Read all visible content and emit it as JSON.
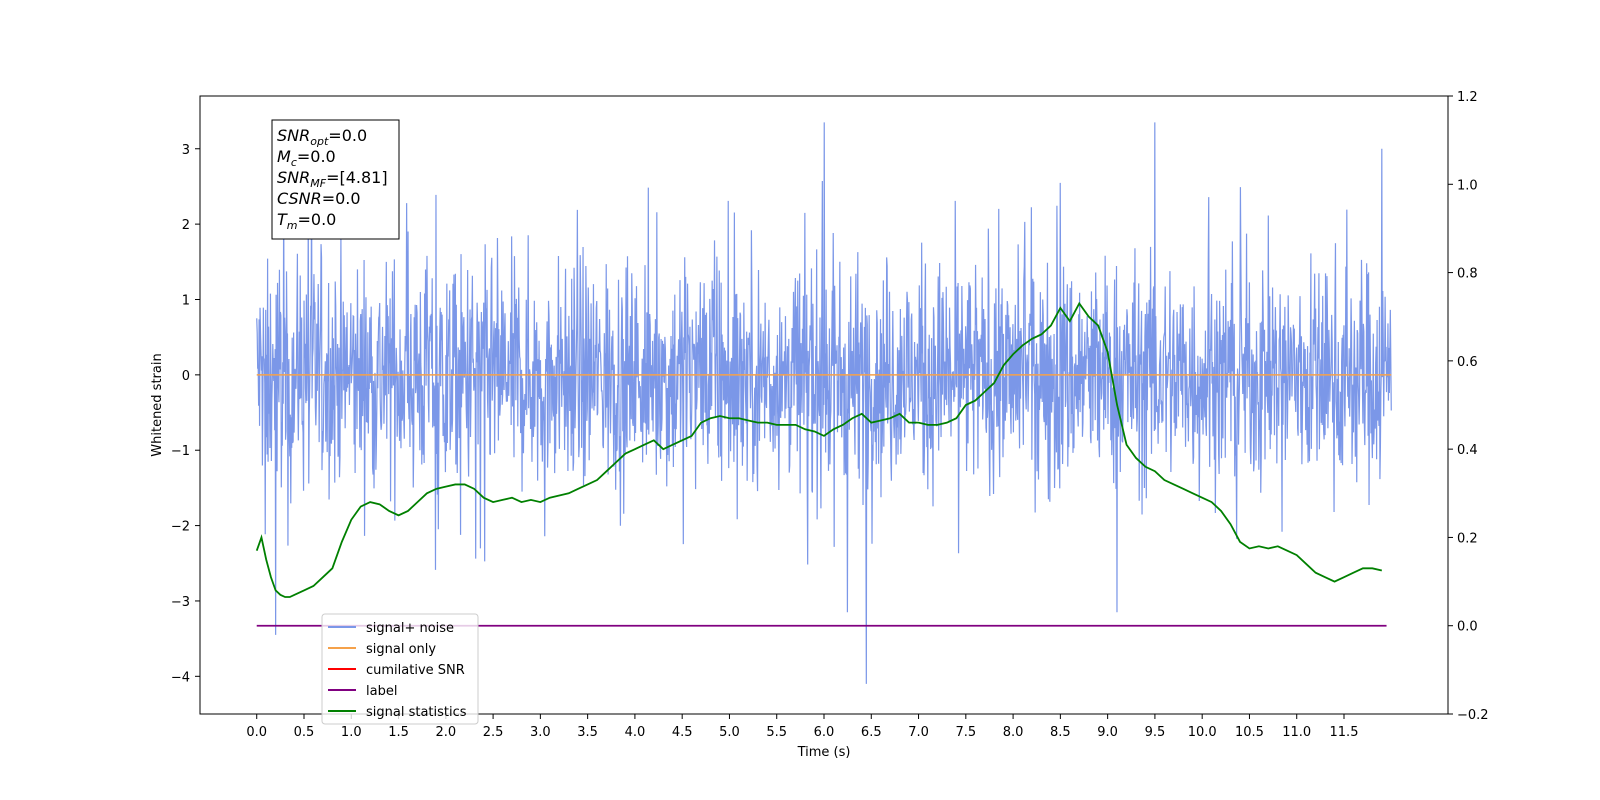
{
  "chart_data": {
    "type": "line",
    "xlabel": "Time (s)",
    "ylabel": "Whitened strain",
    "xlim": [
      -0.6,
      12.6
    ],
    "ylim": [
      -4.5,
      3.7
    ],
    "y2lim": [
      -0.2,
      1.2
    ],
    "x_ticks": [
      "0.0",
      "0.5",
      "1.0",
      "1.5",
      "2.0",
      "2.5",
      "3.0",
      "3.5",
      "4.0",
      "4.5",
      "5.0",
      "5.5",
      "6.0",
      "6.5",
      "7.0",
      "7.5",
      "8.0",
      "8.5",
      "9.0",
      "9.5",
      "10.0",
      "10.5",
      "11.0",
      "11.5"
    ],
    "y_ticks": [
      "3",
      "2",
      "1",
      "0",
      "−1",
      "−2",
      "−3",
      "−4"
    ],
    "y2_ticks": [
      "1.2",
      "1.0",
      "0.8",
      "0.6",
      "0.4",
      "0.2",
      "0.0",
      "−0.2"
    ],
    "legend_position": "lower-left",
    "stats_box": [
      {
        "var": "SNR",
        "sub": "opt",
        "value": "=0.0"
      },
      {
        "var": "M",
        "sub": "c",
        "value": "=0.0"
      },
      {
        "var": "SNR",
        "sub": "MF",
        "value": "=[4.81]"
      },
      {
        "var": "CSNR",
        "sub": "",
        "value": "=0.0"
      },
      {
        "var": "T",
        "sub": "m",
        "value": "=0.0"
      }
    ],
    "series": [
      {
        "name": "signal+ noise",
        "color": "#7b97e8",
        "axis": "left",
        "x_range": [
          0.0,
          12.0
        ],
        "band_envelope_y": [
          -1.9,
          1.9
        ],
        "spikes": [
          [
            0.2,
            -3.45
          ],
          [
            6.0,
            3.35
          ],
          [
            6.45,
            -4.1
          ],
          [
            9.5,
            3.35
          ],
          [
            11.9,
            3.0
          ],
          [
            9.1,
            -3.15
          ],
          [
            6.25,
            -3.15
          ]
        ]
      },
      {
        "name": "signal only",
        "color": "#f5a14a",
        "axis": "left",
        "x": [
          0.0,
          12.0
        ],
        "y": [
          0.0,
          0.0
        ]
      },
      {
        "name": "cumilative SNR",
        "color": "#ff0000",
        "axis": "right",
        "x": [],
        "y": []
      },
      {
        "name": "label",
        "color": "#800080",
        "axis": "right",
        "x": [
          0.0,
          11.95
        ],
        "y": [
          0.0,
          0.0
        ]
      },
      {
        "name": "signal statistics",
        "color": "#008000",
        "axis": "right",
        "x": [
          0.0,
          0.05,
          0.1,
          0.15,
          0.2,
          0.25,
          0.3,
          0.35,
          0.4,
          0.5,
          0.6,
          0.7,
          0.8,
          0.9,
          1.0,
          1.1,
          1.2,
          1.3,
          1.4,
          1.5,
          1.6,
          1.7,
          1.8,
          1.9,
          2.0,
          2.1,
          2.2,
          2.3,
          2.4,
          2.5,
          2.6,
          2.7,
          2.8,
          2.9,
          3.0,
          3.1,
          3.2,
          3.3,
          3.4,
          3.5,
          3.6,
          3.7,
          3.8,
          3.9,
          4.0,
          4.1,
          4.2,
          4.3,
          4.4,
          4.5,
          4.6,
          4.7,
          4.8,
          4.9,
          5.0,
          5.1,
          5.2,
          5.3,
          5.4,
          5.5,
          5.6,
          5.7,
          5.8,
          5.9,
          6.0,
          6.1,
          6.2,
          6.3,
          6.4,
          6.5,
          6.6,
          6.7,
          6.8,
          6.9,
          7.0,
          7.1,
          7.2,
          7.3,
          7.4,
          7.5,
          7.6,
          7.7,
          7.8,
          7.9,
          8.0,
          8.1,
          8.2,
          8.3,
          8.4,
          8.5,
          8.6,
          8.7,
          8.8,
          8.9,
          9.0,
          9.1,
          9.2,
          9.3,
          9.4,
          9.5,
          9.6,
          9.7,
          9.8,
          9.9,
          10.0,
          10.1,
          10.2,
          10.3,
          10.4,
          10.5,
          10.6,
          10.7,
          10.8,
          10.9,
          11.0,
          11.1,
          11.2,
          11.3,
          11.4,
          11.5,
          11.6,
          11.7,
          11.8,
          11.9
        ],
        "y": [
          0.17,
          0.2,
          0.15,
          0.11,
          0.08,
          0.07,
          0.065,
          0.065,
          0.07,
          0.08,
          0.09,
          0.11,
          0.13,
          0.19,
          0.24,
          0.27,
          0.28,
          0.275,
          0.26,
          0.25,
          0.26,
          0.28,
          0.3,
          0.31,
          0.315,
          0.32,
          0.32,
          0.31,
          0.29,
          0.28,
          0.285,
          0.29,
          0.28,
          0.285,
          0.28,
          0.29,
          0.295,
          0.3,
          0.31,
          0.32,
          0.33,
          0.35,
          0.37,
          0.39,
          0.4,
          0.41,
          0.42,
          0.4,
          0.41,
          0.42,
          0.43,
          0.46,
          0.47,
          0.475,
          0.47,
          0.47,
          0.465,
          0.46,
          0.46,
          0.455,
          0.455,
          0.455,
          0.445,
          0.44,
          0.43,
          0.445,
          0.455,
          0.47,
          0.48,
          0.46,
          0.465,
          0.47,
          0.48,
          0.46,
          0.46,
          0.455,
          0.455,
          0.46,
          0.47,
          0.5,
          0.51,
          0.53,
          0.55,
          0.59,
          0.615,
          0.635,
          0.65,
          0.66,
          0.68,
          0.72,
          0.69,
          0.73,
          0.7,
          0.68,
          0.62,
          0.5,
          0.41,
          0.38,
          0.36,
          0.35,
          0.33,
          0.32,
          0.31,
          0.3,
          0.29,
          0.28,
          0.26,
          0.23,
          0.19,
          0.175,
          0.18,
          0.175,
          0.18,
          0.17,
          0.16,
          0.14,
          0.12,
          0.11,
          0.1,
          0.11,
          0.12,
          0.13,
          0.13,
          0.125
        ]
      }
    ]
  }
}
